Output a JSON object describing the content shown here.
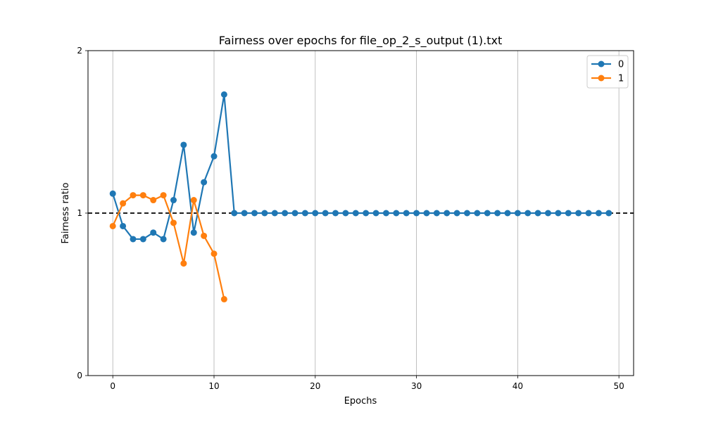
{
  "chart_data": {
    "type": "line",
    "title": "Fairness over epochs for file_op_2_s_output (1).txt",
    "xlabel": "Epochs",
    "ylabel": "Fairness ratio",
    "xlim": [
      -2.45,
      51.45
    ],
    "ylim": [
      0,
      2
    ],
    "xticks": [
      0,
      10,
      20,
      30,
      40,
      50
    ],
    "yticks": [
      0,
      1,
      2
    ],
    "grid": "vertical",
    "legend_position": "top-right",
    "reference_line": {
      "y": 1,
      "style": "dashed",
      "color": "#000000"
    },
    "series": [
      {
        "name": "0",
        "color": "#1f77b4",
        "x": [
          0,
          1,
          2,
          3,
          4,
          5,
          6,
          7,
          8,
          9,
          10,
          11,
          12,
          13,
          14,
          15,
          16,
          17,
          18,
          19,
          20,
          21,
          22,
          23,
          24,
          25,
          26,
          27,
          28,
          29,
          30,
          31,
          32,
          33,
          34,
          35,
          36,
          37,
          38,
          39,
          40,
          41,
          42,
          43,
          44,
          45,
          46,
          47,
          48,
          49
        ],
        "y": [
          1.12,
          0.92,
          0.84,
          0.84,
          0.88,
          0.84,
          1.08,
          1.42,
          0.88,
          1.19,
          1.35,
          1.73,
          1,
          1,
          1,
          1,
          1,
          1,
          1,
          1,
          1,
          1,
          1,
          1,
          1,
          1,
          1,
          1,
          1,
          1,
          1,
          1,
          1,
          1,
          1,
          1,
          1,
          1,
          1,
          1,
          1,
          1,
          1,
          1,
          1,
          1,
          1,
          1,
          1,
          1
        ]
      },
      {
        "name": "1",
        "color": "#ff7f0e",
        "x": [
          0,
          1,
          2,
          3,
          4,
          5,
          6,
          7,
          8,
          9,
          10,
          11
        ],
        "y": [
          0.92,
          1.06,
          1.11,
          1.11,
          1.08,
          1.11,
          0.94,
          0.69,
          1.08,
          0.86,
          0.75,
          0.47
        ]
      }
    ]
  }
}
